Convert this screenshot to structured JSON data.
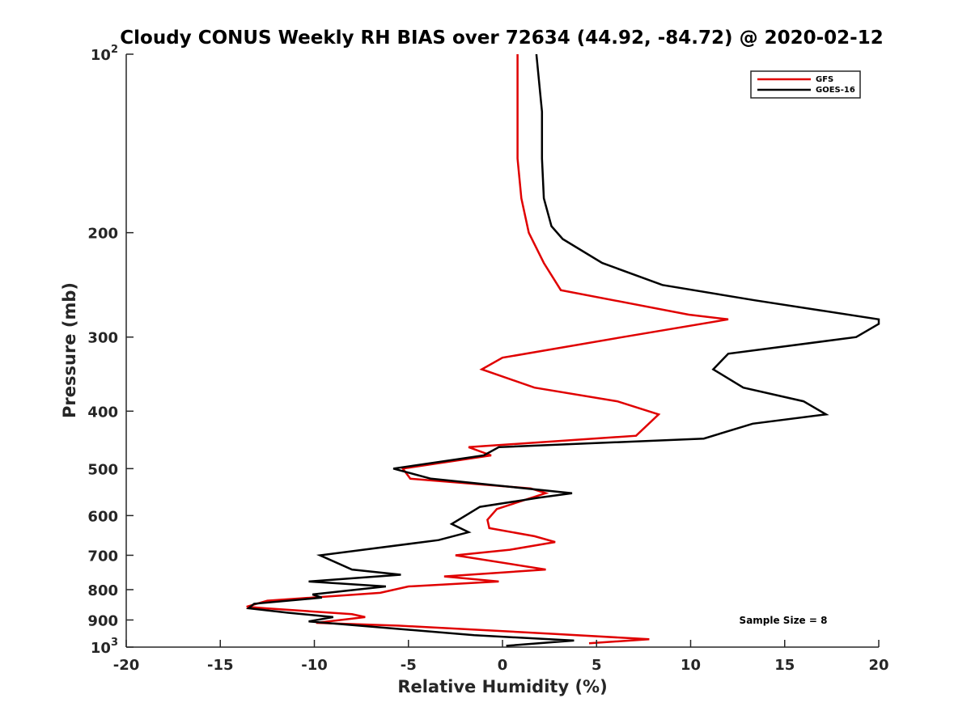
{
  "chart_data": {
    "type": "line",
    "title": "Cloudy CONUS Weekly RH BIAS over 72634 (44.92, -84.72) @ 2020-02-12",
    "xlabel": "Relative Humidity (%)",
    "ylabel": "Pressure (mb)",
    "xlim": [
      -20,
      20
    ],
    "ylim": [
      100,
      1000
    ],
    "yscale": "log",
    "yaxis_reversed": true,
    "grid": false,
    "legend_position": "top-right",
    "x_ticks": [
      "-20",
      "-15",
      "-10",
      "-5",
      "0",
      "5",
      "10",
      "15",
      "20"
    ],
    "x_tick_values": [
      -20,
      -15,
      -10,
      -5,
      0,
      5,
      10,
      15,
      20
    ],
    "y_ticks": [
      {
        "value": 100,
        "base": "10",
        "exp": "2"
      },
      {
        "value": 200,
        "base": "200",
        "exp": ""
      },
      {
        "value": 300,
        "base": "300",
        "exp": ""
      },
      {
        "value": 400,
        "base": "400",
        "exp": ""
      },
      {
        "value": 500,
        "base": "500",
        "exp": ""
      },
      {
        "value": 600,
        "base": "600",
        "exp": ""
      },
      {
        "value": 700,
        "base": "700",
        "exp": ""
      },
      {
        "value": 800,
        "base": "800",
        "exp": ""
      },
      {
        "value": 900,
        "base": "900",
        "exp": ""
      },
      {
        "value": 1000,
        "base": "10",
        "exp": "3"
      }
    ],
    "annotation": "Sample Size = 8",
    "series": [
      {
        "name": "GFS",
        "color": "#e00000",
        "points": [
          [
            0.8,
            100
          ],
          [
            0.8,
            125
          ],
          [
            0.8,
            150
          ],
          [
            1.0,
            175
          ],
          [
            1.4,
            200
          ],
          [
            2.2,
            225
          ],
          [
            3.1,
            250
          ],
          [
            9.9,
            275
          ],
          [
            12.0,
            280
          ],
          [
            6.4,
            300
          ],
          [
            0.0,
            325
          ],
          [
            -1.1,
            340
          ],
          [
            1.7,
            365
          ],
          [
            6.1,
            385
          ],
          [
            8.3,
            405
          ],
          [
            7.1,
            440
          ],
          [
            -1.8,
            460
          ],
          [
            -0.6,
            475
          ],
          [
            -5.3,
            500
          ],
          [
            -4.9,
            520
          ],
          [
            1.5,
            540
          ],
          [
            2.3,
            550
          ],
          [
            -0.3,
            585
          ],
          [
            -0.8,
            610
          ],
          [
            -0.7,
            630
          ],
          [
            1.7,
            650
          ],
          [
            2.8,
            665
          ],
          [
            0.4,
            685
          ],
          [
            -2.5,
            700
          ],
          [
            2.3,
            740
          ],
          [
            -3.1,
            760
          ],
          [
            -0.2,
            775
          ],
          [
            -5.0,
            790
          ],
          [
            -6.5,
            810
          ],
          [
            -12.5,
            835
          ],
          [
            -13.6,
            855
          ],
          [
            -12.6,
            860
          ],
          [
            -8.0,
            880
          ],
          [
            -7.3,
            890
          ],
          [
            -9.9,
            910
          ],
          [
            -5.5,
            920
          ],
          [
            2.8,
            950
          ],
          [
            7.8,
            970
          ],
          [
            4.6,
            985
          ]
        ]
      },
      {
        "name": "GOES-16",
        "color": "#000000",
        "points": [
          [
            1.8,
            100
          ],
          [
            2.1,
            125
          ],
          [
            2.1,
            150
          ],
          [
            2.2,
            175
          ],
          [
            2.6,
            195
          ],
          [
            3.2,
            205
          ],
          [
            5.3,
            225
          ],
          [
            8.5,
            245
          ],
          [
            13.4,
            260
          ],
          [
            20.0,
            280
          ],
          [
            20.0,
            285
          ],
          [
            18.8,
            300
          ],
          [
            12.0,
            320
          ],
          [
            11.2,
            340
          ],
          [
            12.8,
            365
          ],
          [
            16.0,
            385
          ],
          [
            17.2,
            405
          ],
          [
            13.3,
            420
          ],
          [
            10.7,
            445
          ],
          [
            -0.2,
            460
          ],
          [
            -1.0,
            475
          ],
          [
            -5.8,
            500
          ],
          [
            -3.8,
            520
          ],
          [
            3.7,
            550
          ],
          [
            1.9,
            560
          ],
          [
            -1.2,
            580
          ],
          [
            -2.7,
            620
          ],
          [
            -1.8,
            640
          ],
          [
            -3.4,
            660
          ],
          [
            -9.7,
            700
          ],
          [
            -8.0,
            740
          ],
          [
            -5.4,
            755
          ],
          [
            -10.3,
            775
          ],
          [
            -6.2,
            790
          ],
          [
            -10.1,
            815
          ],
          [
            -9.6,
            825
          ],
          [
            -13.2,
            845
          ],
          [
            -13.5,
            860
          ],
          [
            -11.4,
            875
          ],
          [
            -9.0,
            890
          ],
          [
            -10.3,
            905
          ],
          [
            -8.5,
            915
          ],
          [
            -1.5,
            955
          ],
          [
            3.8,
            975
          ],
          [
            0.2,
            995
          ]
        ]
      }
    ]
  }
}
